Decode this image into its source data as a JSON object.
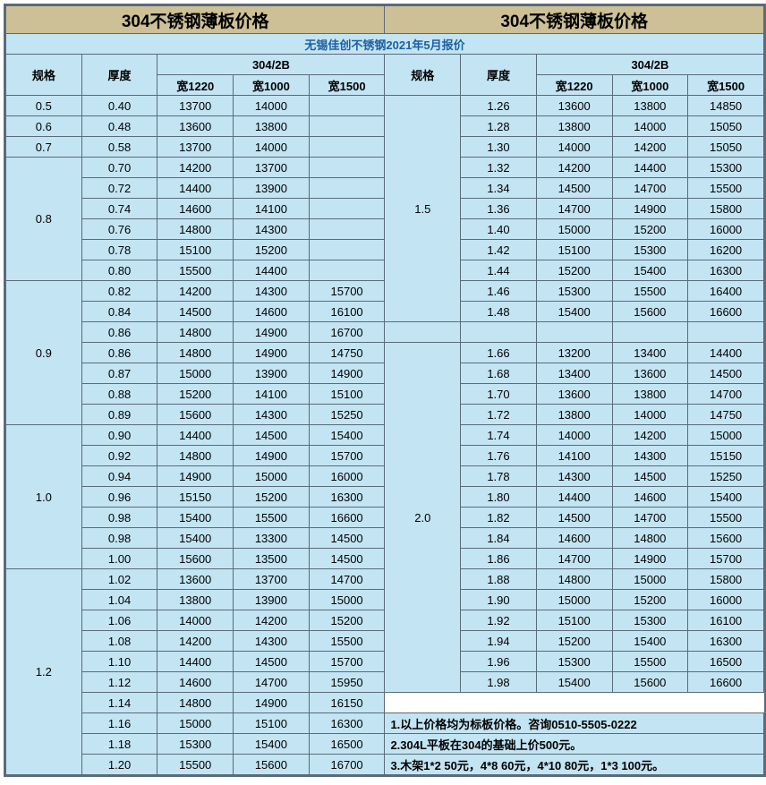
{
  "title": "304不锈钢薄板价格",
  "subtitle": "无锡佳创不锈钢2021年5月报价",
  "h": {
    "spec": "规格",
    "thick": "厚度",
    "grade": "304/2B",
    "w1": "宽1220",
    "w2": "宽1000",
    "w3": "宽1500"
  },
  "colors": {
    "header_bg": "#cdc097",
    "body_bg": "#c3e4f3",
    "border": "#5a6b7a",
    "subtitle_text": "#1e5fa3"
  },
  "font": {
    "title_size": 19,
    "body_size": 13,
    "family": "Microsoft YaHei"
  },
  "L": [
    {
      "s": "0.5",
      "r": [
        [
          "0.40",
          "13700",
          "14000",
          ""
        ]
      ]
    },
    {
      "s": "0.6",
      "r": [
        [
          "0.48",
          "13600",
          "13800",
          ""
        ]
      ]
    },
    {
      "s": "0.7",
      "r": [
        [
          "0.58",
          "13700",
          "14000",
          ""
        ]
      ]
    },
    {
      "s": "0.8",
      "r": [
        [
          "0.70",
          "14200",
          "13700",
          ""
        ],
        [
          "0.72",
          "14400",
          "13900",
          ""
        ],
        [
          "0.74",
          "14600",
          "14100",
          ""
        ],
        [
          "0.76",
          "14800",
          "14300",
          ""
        ],
        [
          "0.78",
          "15100",
          "15200",
          ""
        ],
        [
          "0.80",
          "15500",
          "14400",
          ""
        ]
      ]
    },
    {
      "s": "0.9",
      "r": [
        [
          "0.82",
          "14200",
          "14300",
          "15700"
        ],
        [
          "0.84",
          "14500",
          "14600",
          "16100"
        ],
        [
          "0.86",
          "14800",
          "14900",
          "16700"
        ],
        [
          "0.86",
          "14800",
          "14900",
          "14750"
        ],
        [
          "0.87",
          "15000",
          "13900",
          "14900"
        ],
        [
          "0.88",
          "15200",
          "14100",
          "15100"
        ],
        [
          "0.89",
          "15600",
          "14300",
          "15250"
        ]
      ]
    },
    {
      "s": "1.0",
      "r": [
        [
          "0.90",
          "14400",
          "14500",
          "15400"
        ],
        [
          "0.92",
          "14800",
          "14900",
          "15700"
        ],
        [
          "0.94",
          "14900",
          "15000",
          "16000"
        ],
        [
          "0.96",
          "15150",
          "15200",
          "16300"
        ],
        [
          "0.98",
          "15400",
          "15500",
          "16600"
        ],
        [
          "0.98",
          "15400",
          "13300",
          "14500"
        ],
        [
          "1.00",
          "15600",
          "13500",
          "14500"
        ]
      ]
    },
    {
      "s": "1.2",
      "r": [
        [
          "1.02",
          "13600",
          "13700",
          "14700"
        ],
        [
          "1.04",
          "13800",
          "13900",
          "15000"
        ],
        [
          "1.06",
          "14000",
          "14200",
          "15200"
        ],
        [
          "1.08",
          "14200",
          "14300",
          "15500"
        ],
        [
          "1.10",
          "14400",
          "14500",
          "15700"
        ],
        [
          "1.12",
          "14600",
          "14700",
          "15950"
        ],
        [
          "1.14",
          "14800",
          "14900",
          "16150"
        ],
        [
          "1.16",
          "15000",
          "15100",
          "16300"
        ],
        [
          "1.18",
          "15300",
          "15400",
          "16500"
        ],
        [
          "1.20",
          "15500",
          "15600",
          "16700"
        ]
      ]
    }
  ],
  "R": [
    {
      "s": "1.5",
      "r": [
        [
          "1.26",
          "13600",
          "13800",
          "14850"
        ],
        [
          "1.28",
          "13800",
          "14000",
          "15050"
        ],
        [
          "1.30",
          "14000",
          "14200",
          "15050"
        ],
        [
          "1.32",
          "14200",
          "14400",
          "15300"
        ],
        [
          "1.34",
          "14500",
          "14700",
          "15500"
        ],
        [
          "1.36",
          "14700",
          "14900",
          "15800"
        ],
        [
          "1.40",
          "15000",
          "15200",
          "16000"
        ],
        [
          "1.42",
          "15100",
          "15300",
          "16200"
        ],
        [
          "1.44",
          "15200",
          "15400",
          "16300"
        ],
        [
          "1.46",
          "15300",
          "15500",
          "16400"
        ],
        [
          "1.48",
          "15400",
          "15600",
          "16600"
        ]
      ]
    },
    {
      "s": "",
      "r": [
        [
          "",
          "",
          "",
          ""
        ]
      ]
    },
    {
      "s": "2.0",
      "r": [
        [
          "1.66",
          "13200",
          "13400",
          "14400"
        ],
        [
          "1.68",
          "13400",
          "13600",
          "14500"
        ],
        [
          "1.70",
          "13600",
          "13800",
          "14700"
        ],
        [
          "1.72",
          "13800",
          "14000",
          "14750"
        ],
        [
          "1.74",
          "14000",
          "14200",
          "15000"
        ],
        [
          "1.76",
          "14100",
          "14300",
          "15150"
        ],
        [
          "1.78",
          "14300",
          "14500",
          "15250"
        ],
        [
          "1.80",
          "14400",
          "14600",
          "15400"
        ],
        [
          "1.82",
          "14500",
          "14700",
          "15500"
        ],
        [
          "1.84",
          "14600",
          "14800",
          "15600"
        ],
        [
          "1.86",
          "14700",
          "14900",
          "15700"
        ],
        [
          "1.88",
          "14800",
          "15000",
          "15800"
        ],
        [
          "1.90",
          "15000",
          "15200",
          "16000"
        ],
        [
          "1.92",
          "15100",
          "15300",
          "16100"
        ],
        [
          "1.94",
          "15200",
          "15400",
          "16300"
        ],
        [
          "1.96",
          "15300",
          "15500",
          "16500"
        ],
        [
          "1.98",
          "15400",
          "15600",
          "16600"
        ]
      ]
    }
  ],
  "notes": [
    "1.以上价格均为标板价格。咨询0510-5505-0222",
    "2.304L平板在304的基础上价500元。",
    "3.木架1*2 50元，4*8 60元，4*10 80元，1*3 100元。"
  ]
}
